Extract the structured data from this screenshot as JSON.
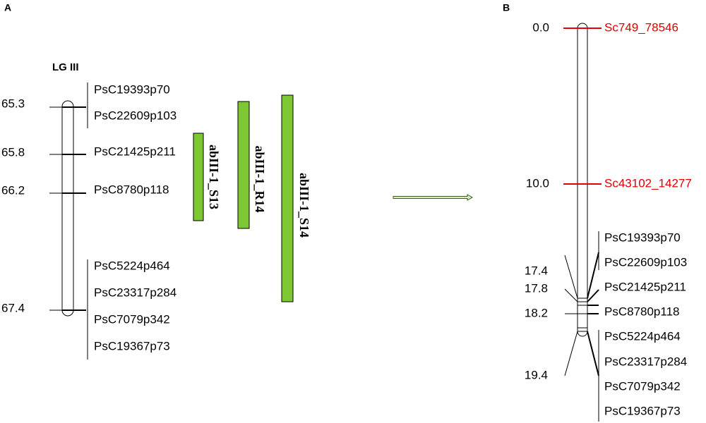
{
  "panel_a": {
    "label": "A",
    "linkage_group": "LG III",
    "positions": [
      "65.3",
      "65.8",
      "66.2",
      "67.4"
    ],
    "markers": [
      "PsC19393p70",
      "PsC22609p103",
      "PsC21425p211",
      "PsC8780p118",
      "PsC5224p464",
      "PsC23317p284",
      "PsC7079p342",
      "PsC19367p73"
    ],
    "qtls": [
      "abIII-1_S13",
      "abIII-1_R14",
      "abIII-1_S14"
    ]
  },
  "panel_b": {
    "label": "B",
    "positions": [
      "0.0",
      "10.0",
      "17.4",
      "17.8",
      "18.2",
      "19.4"
    ],
    "markers": [
      "Sc749_78546",
      "Sc43102_14277",
      "PsC19393p70",
      "PsC22609p103",
      "PsC21425p211",
      "PsC8780p118",
      "PsC5224p464",
      "PsC23317p284",
      "PsC7079p342",
      "PsC19367p73"
    ]
  }
}
